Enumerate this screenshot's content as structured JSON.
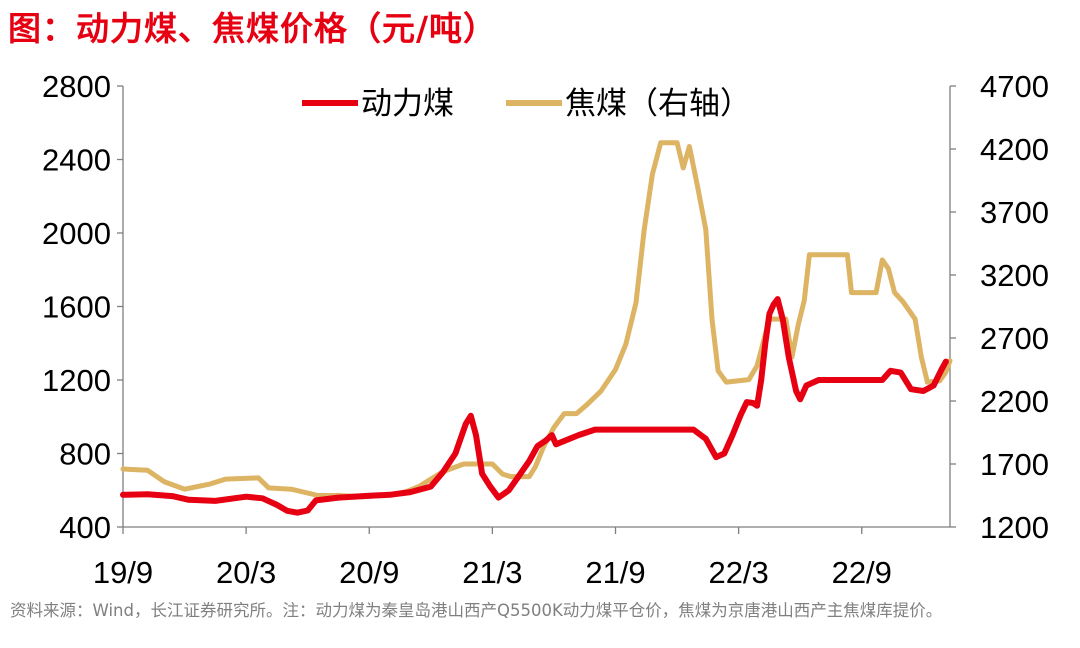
{
  "figure": {
    "title": "图：动力煤、焦煤价格（元/吨）",
    "source": "资料来源：Wind，长江证券研究所。注：动力煤为秦皇岛港山西产Q5500K动力煤平仓价，焦煤为京唐港山西产主焦煤库提价。"
  },
  "chart_data": {
    "type": "line",
    "x_tick_labels": [
      "19/9",
      "20/3",
      "20/9",
      "21/3",
      "21/9",
      "22/3",
      "22/9"
    ],
    "x_ticks_at_month_index": [
      0,
      6,
      12,
      18,
      24,
      30,
      36
    ],
    "x_unit": "month index since 2019-09",
    "y_left": {
      "min": 400,
      "max": 2800,
      "ticks": [
        400,
        800,
        1200,
        1600,
        2000,
        2400,
        2800
      ]
    },
    "y_right": {
      "min": 1200,
      "max": 4700,
      "ticks": [
        1200,
        1700,
        2200,
        2700,
        3200,
        3700,
        4200,
        4700
      ]
    },
    "legend_position": "top-center",
    "grid": false,
    "colors": {
      "thermal": "#e60012",
      "coking": "#dcb464"
    },
    "series": [
      {
        "name": "动力煤",
        "axis": "left",
        "points": [
          [
            0,
            575
          ],
          [
            1.2,
            578
          ],
          [
            2.4,
            568
          ],
          [
            3.2,
            548
          ],
          [
            4.5,
            542
          ],
          [
            6.0,
            565
          ],
          [
            6.8,
            556
          ],
          [
            7.5,
            520
          ],
          [
            8.0,
            488
          ],
          [
            8.5,
            478
          ],
          [
            9.0,
            490
          ],
          [
            9.4,
            545
          ],
          [
            10.5,
            560
          ],
          [
            12.0,
            570
          ],
          [
            13.0,
            575
          ],
          [
            14.0,
            590
          ],
          [
            15.0,
            620
          ],
          [
            15.6,
            700
          ],
          [
            16.2,
            800
          ],
          [
            16.7,
            960
          ],
          [
            16.95,
            1005
          ],
          [
            17.2,
            900
          ],
          [
            17.5,
            690
          ],
          [
            17.9,
            620
          ],
          [
            18.3,
            560
          ],
          [
            18.8,
            600
          ],
          [
            19.3,
            680
          ],
          [
            19.8,
            760
          ],
          [
            20.2,
            840
          ],
          [
            20.6,
            870
          ],
          [
            20.9,
            900
          ],
          [
            21.1,
            850
          ],
          [
            22.2,
            900
          ],
          [
            23.0,
            930
          ],
          [
            27.8,
            930
          ],
          [
            28.4,
            880
          ],
          [
            28.9,
            780
          ],
          [
            29.3,
            800
          ],
          [
            29.7,
            900
          ],
          [
            30.1,
            1010
          ],
          [
            30.4,
            1080
          ],
          [
            30.7,
            1075
          ],
          [
            30.9,
            1060
          ],
          [
            31.1,
            1200
          ],
          [
            31.3,
            1400
          ],
          [
            31.5,
            1560
          ],
          [
            31.7,
            1610
          ],
          [
            31.9,
            1640
          ],
          [
            32.15,
            1530
          ],
          [
            32.45,
            1320
          ],
          [
            32.8,
            1140
          ],
          [
            33.0,
            1095
          ],
          [
            33.3,
            1170
          ],
          [
            33.9,
            1200
          ],
          [
            37.0,
            1200
          ],
          [
            37.4,
            1250
          ],
          [
            37.9,
            1240
          ],
          [
            38.4,
            1150
          ],
          [
            39.0,
            1140
          ],
          [
            39.5,
            1170
          ],
          [
            39.9,
            1260
          ],
          [
            40.1,
            1300
          ]
        ]
      },
      {
        "name": "焦煤（右轴）",
        "axis": "right",
        "points": [
          [
            0,
            1660
          ],
          [
            1.2,
            1650
          ],
          [
            2.0,
            1560
          ],
          [
            3.0,
            1500
          ],
          [
            4.2,
            1540
          ],
          [
            5.0,
            1580
          ],
          [
            6.6,
            1590
          ],
          [
            7.1,
            1510
          ],
          [
            8.2,
            1500
          ],
          [
            9.5,
            1450
          ],
          [
            10.5,
            1450
          ],
          [
            11.7,
            1440
          ],
          [
            12.6,
            1450
          ],
          [
            13.2,
            1460
          ],
          [
            13.8,
            1480
          ],
          [
            14.4,
            1520
          ],
          [
            15.0,
            1580
          ],
          [
            15.6,
            1640
          ],
          [
            16.6,
            1700
          ],
          [
            18.0,
            1700
          ],
          [
            18.5,
            1620
          ],
          [
            18.9,
            1600
          ],
          [
            19.8,
            1600
          ],
          [
            20.1,
            1680
          ],
          [
            20.5,
            1840
          ],
          [
            21.0,
            1990
          ],
          [
            21.5,
            2100
          ],
          [
            22.1,
            2100
          ],
          [
            22.6,
            2170
          ],
          [
            23.3,
            2280
          ],
          [
            24.0,
            2450
          ],
          [
            24.5,
            2650
          ],
          [
            25.0,
            2980
          ],
          [
            25.4,
            3560
          ],
          [
            25.8,
            4000
          ],
          [
            26.2,
            4250
          ],
          [
            27.0,
            4250
          ],
          [
            27.3,
            4050
          ],
          [
            27.6,
            4220
          ],
          [
            28.0,
            3900
          ],
          [
            28.4,
            3560
          ],
          [
            28.7,
            2850
          ],
          [
            29.0,
            2440
          ],
          [
            29.4,
            2350
          ],
          [
            30.5,
            2370
          ],
          [
            30.9,
            2480
          ],
          [
            31.5,
            2850
          ],
          [
            32.3,
            2850
          ],
          [
            32.6,
            2550
          ],
          [
            32.9,
            2800
          ],
          [
            33.2,
            3000
          ],
          [
            33.45,
            3360
          ],
          [
            34.0,
            3360
          ],
          [
            35.3,
            3360
          ],
          [
            35.5,
            3060
          ],
          [
            36.0,
            3060
          ],
          [
            36.7,
            3060
          ],
          [
            37.0,
            3320
          ],
          [
            37.3,
            3250
          ],
          [
            37.6,
            3060
          ],
          [
            38.0,
            2990
          ],
          [
            38.3,
            2920
          ],
          [
            38.6,
            2850
          ],
          [
            38.9,
            2550
          ],
          [
            39.2,
            2350
          ],
          [
            39.8,
            2360
          ],
          [
            40.1,
            2430
          ],
          [
            40.3,
            2520
          ]
        ]
      }
    ]
  }
}
